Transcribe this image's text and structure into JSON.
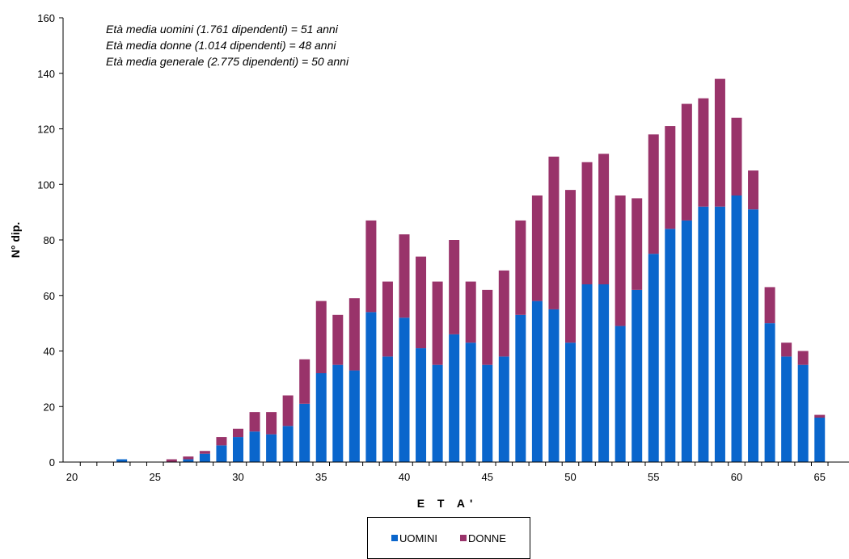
{
  "chart_data": {
    "type": "bar",
    "stacked": true,
    "xlabel": "E T A'",
    "ylabel": "N° dip.",
    "ylim": [
      0,
      160
    ],
    "yticks": [
      0,
      20,
      40,
      60,
      80,
      100,
      120,
      140,
      160
    ],
    "xlim": [
      20,
      66
    ],
    "xticks": [
      20,
      25,
      30,
      35,
      40,
      45,
      50,
      55,
      60,
      65
    ],
    "grid": false,
    "legend_position": "bottom",
    "annotations": [
      "Età media uomini (1.761 dipendenti) = 51 anni",
      "Età media donne (1.014 dipendenti) = 48 anni",
      "Età media generale (2.775 dipendenti) = 50 anni"
    ],
    "x": [
      23,
      26,
      27,
      28,
      29,
      30,
      31,
      32,
      33,
      34,
      35,
      36,
      37,
      38,
      39,
      40,
      41,
      42,
      43,
      44,
      45,
      46,
      47,
      48,
      49,
      50,
      51,
      52,
      53,
      54,
      55,
      56,
      57,
      58,
      59,
      60,
      61,
      62,
      63,
      64,
      65
    ],
    "series": [
      {
        "name": "UOMINI",
        "color": "#0a66cc",
        "values": [
          1,
          0,
          1,
          3,
          6,
          9,
          11,
          10,
          13,
          21,
          32,
          35,
          33,
          54,
          38,
          52,
          41,
          35,
          46,
          43,
          35,
          38,
          53,
          58,
          55,
          43,
          64,
          64,
          49,
          62,
          75,
          84,
          87,
          92,
          92,
          96,
          91,
          50,
          38,
          35,
          16
        ]
      },
      {
        "name": "DONNE",
        "color": "#99336a",
        "values": [
          0,
          1,
          1,
          1,
          3,
          3,
          7,
          8,
          11,
          16,
          26,
          18,
          26,
          33,
          27,
          30,
          33,
          30,
          34,
          22,
          27,
          31,
          34,
          38,
          55,
          55,
          44,
          47,
          47,
          33,
          43,
          37,
          42,
          39,
          46,
          28,
          14,
          13,
          5,
          5,
          1
        ]
      }
    ]
  }
}
